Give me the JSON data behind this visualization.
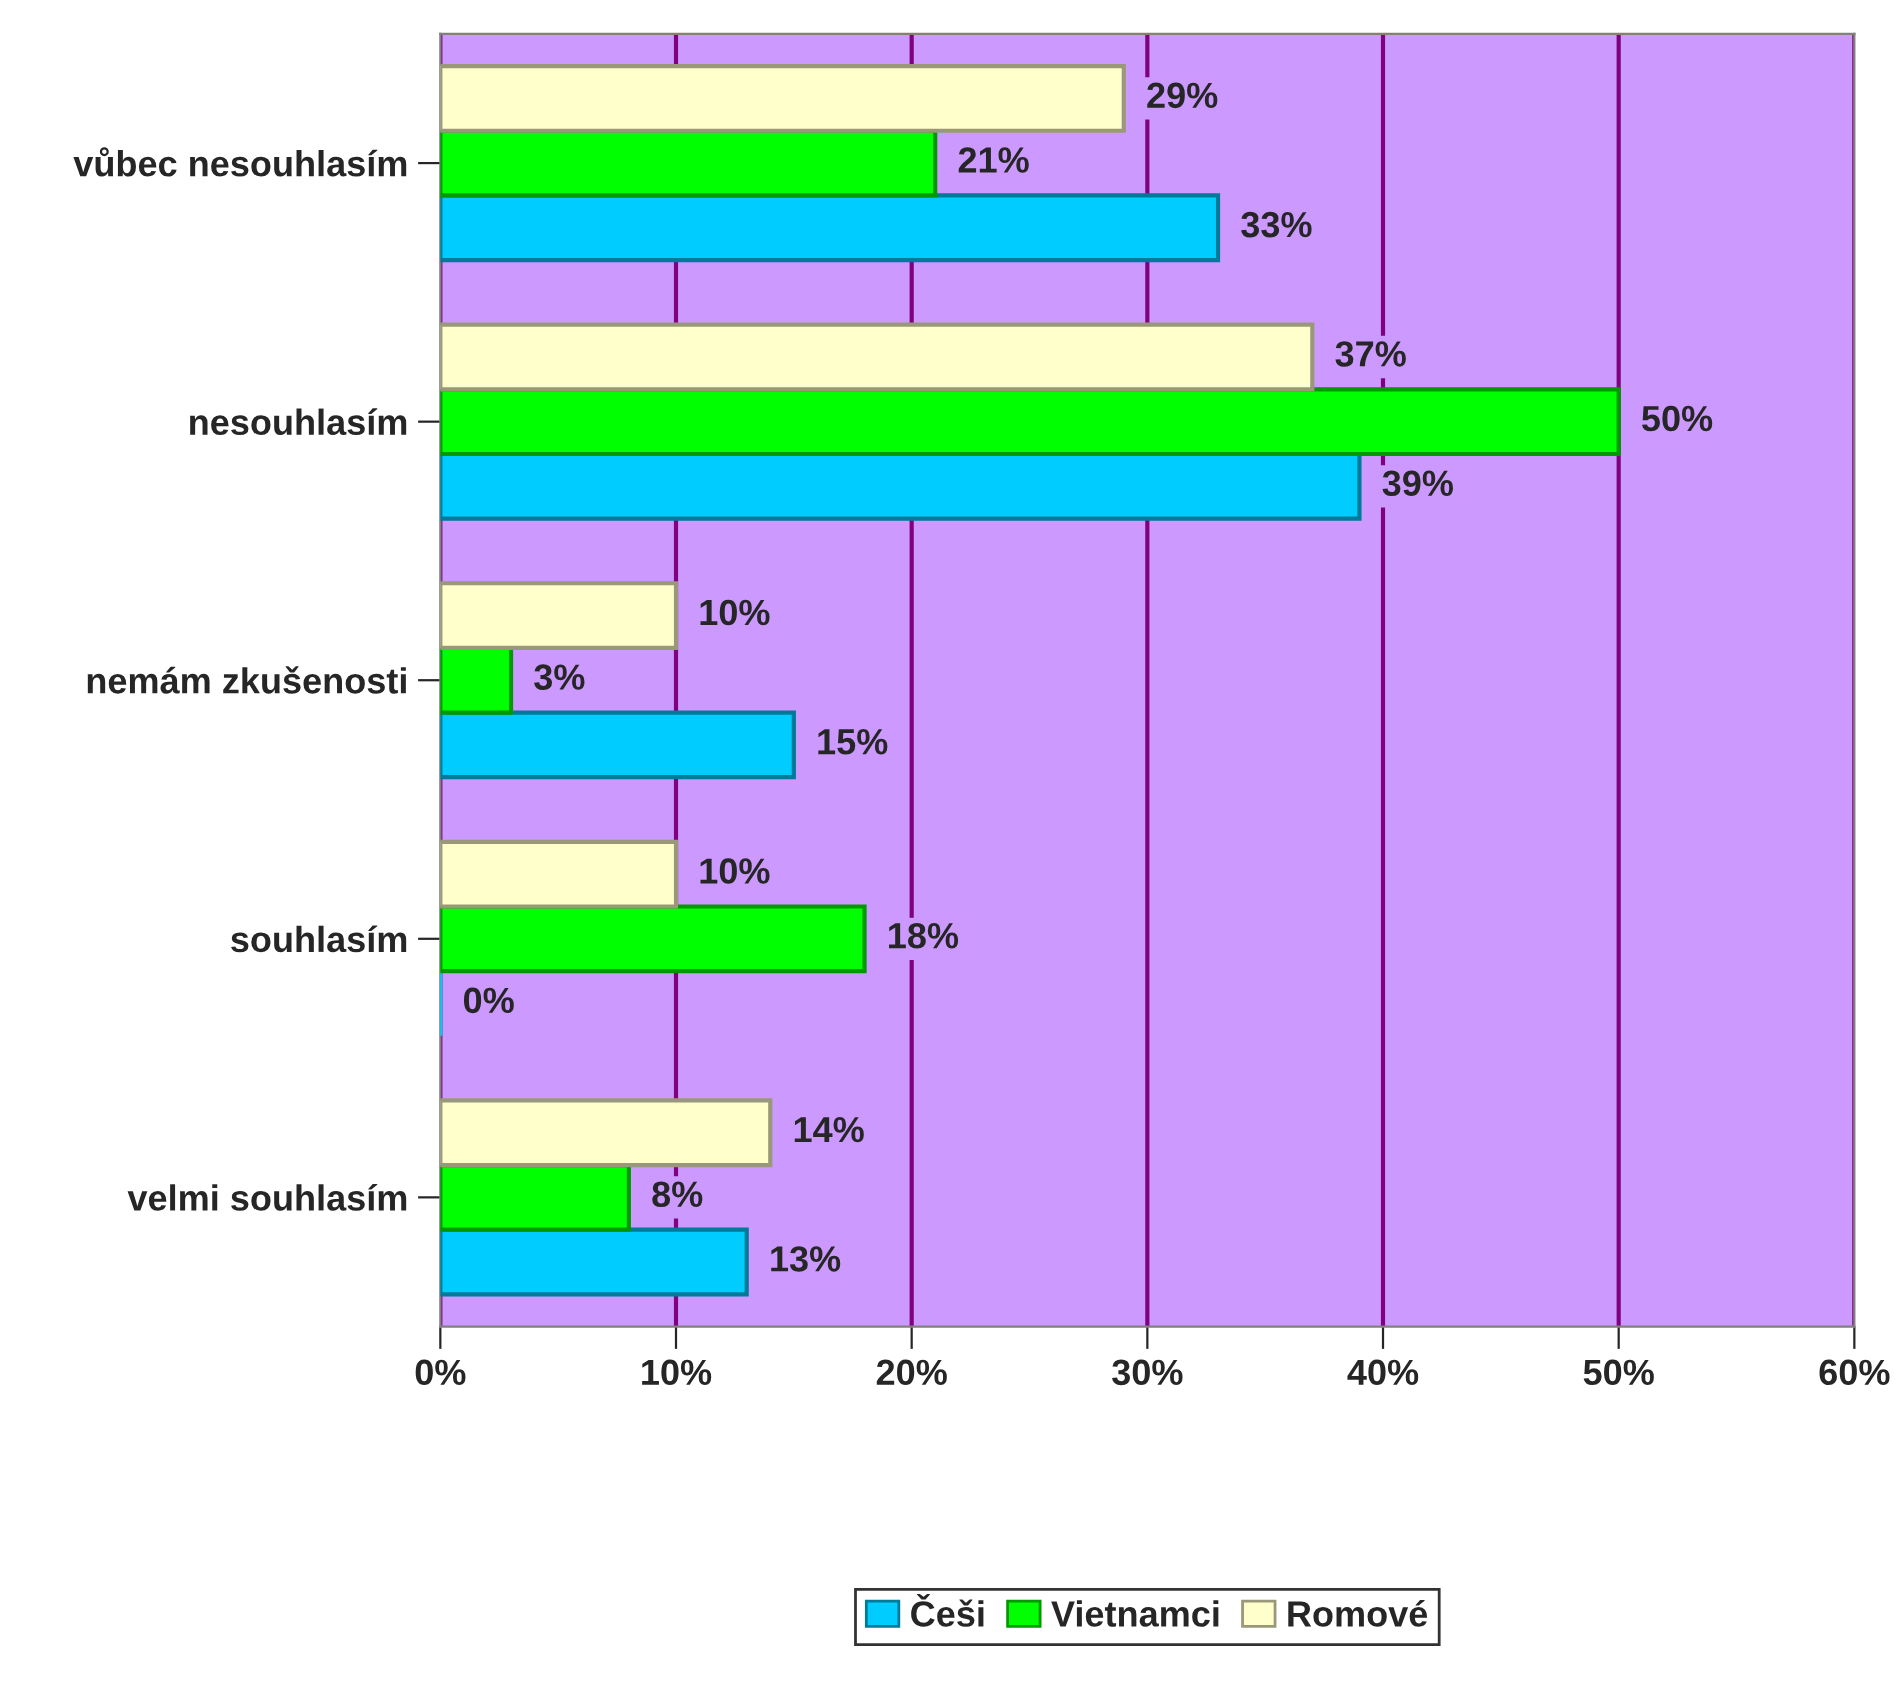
{
  "chart_data": {
    "type": "bar",
    "orientation": "horizontal",
    "categories": [
      "vůbec nesouhlasím",
      "nesouhlasím",
      "nemám zkušenosti",
      "souhlasím",
      "velmi souhlasím"
    ],
    "series": [
      {
        "name": "Češi",
        "color": "#00ccff",
        "values": [
          33,
          39,
          15,
          0,
          13
        ],
        "value_labels": [
          "33%",
          "39%",
          "15%",
          "0%",
          "13%"
        ]
      },
      {
        "name": "Vietnamci",
        "color": "#00ff00",
        "values": [
          21,
          50,
          3,
          18,
          8
        ],
        "value_labels": [
          "21%",
          "50%",
          "3%",
          "18%",
          "8%"
        ]
      },
      {
        "name": "Romové",
        "color": "#ffffcc",
        "values": [
          29,
          37,
          10,
          10,
          14
        ],
        "value_labels": [
          "29%",
          "37%",
          "10%",
          "10%",
          "14%"
        ]
      }
    ],
    "xlim": [
      0,
      60
    ],
    "xticks": [
      {
        "value": 0,
        "label": "0%"
      },
      {
        "value": 10,
        "label": "10%"
      },
      {
        "value": 20,
        "label": "20%"
      },
      {
        "value": 30,
        "label": "30%"
      },
      {
        "value": 40,
        "label": "40%"
      },
      {
        "value": 50,
        "label": "50%"
      },
      {
        "value": 60,
        "label": "60%"
      }
    ],
    "grid": "x",
    "legend": "bottom"
  }
}
